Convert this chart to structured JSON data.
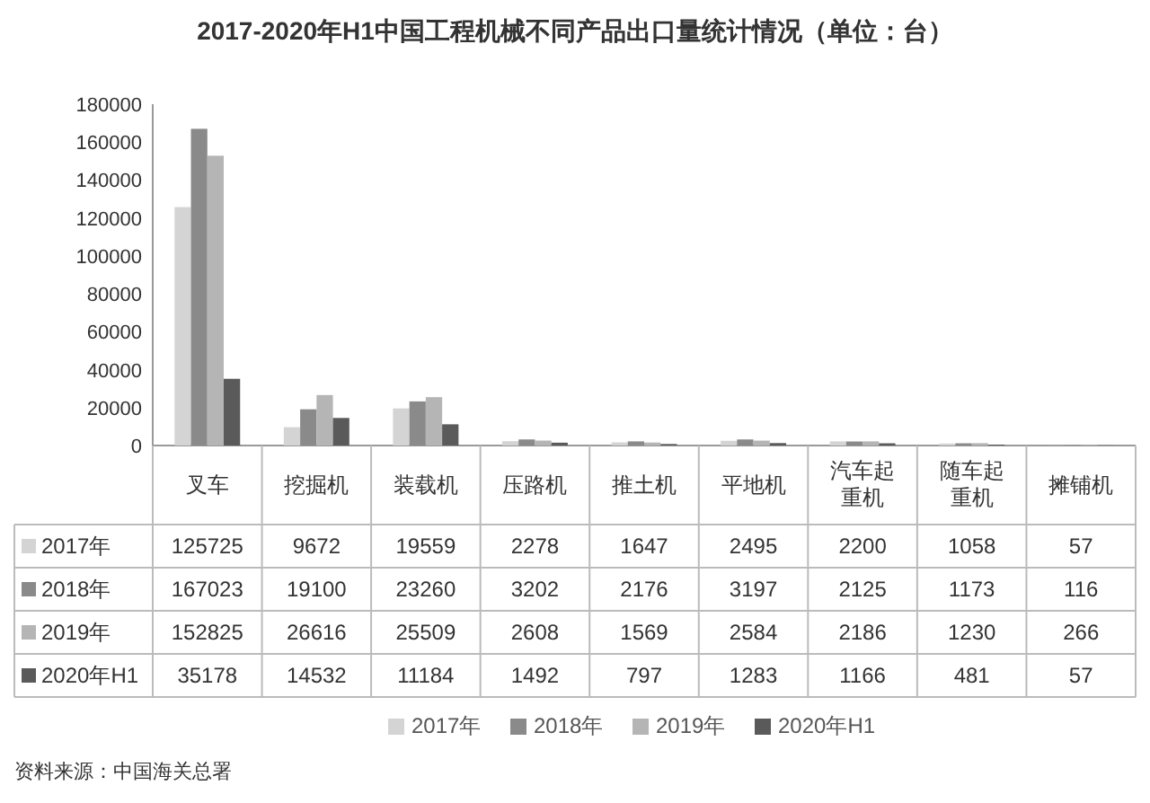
{
  "chart_data": {
    "type": "bar",
    "title": "2017-2020年H1中国工程机械不同产品出口量统计情况（单位：台）",
    "categories": [
      "叉车",
      "挖掘机",
      "装载机",
      "压路机",
      "推土机",
      "平地机",
      "汽车起重机",
      "随车起重机",
      "摊铺机"
    ],
    "series": [
      {
        "name": "2017年",
        "color": "#d4d4d4",
        "values": [
          125725,
          9672,
          19559,
          2278,
          1647,
          2495,
          2200,
          1058,
          57
        ]
      },
      {
        "name": "2018年",
        "color": "#8a8a8a",
        "values": [
          167023,
          19100,
          23260,
          3202,
          2176,
          3197,
          2125,
          1173,
          116
        ]
      },
      {
        "name": "2019年",
        "color": "#b5b5b5",
        "values": [
          152825,
          26616,
          25509,
          2608,
          1569,
          2584,
          2186,
          1230,
          266
        ]
      },
      {
        "name": "2020年H1",
        "color": "#5a5a5a",
        "values": [
          35178,
          14532,
          11184,
          1492,
          797,
          1283,
          1166,
          481,
          57
        ]
      }
    ],
    "ylim": [
      0,
      180000
    ],
    "yticks": [
      0,
      20000,
      40000,
      60000,
      80000,
      100000,
      120000,
      140000,
      160000,
      180000
    ],
    "data_labels": true,
    "legend": "bottom",
    "annotations": [
      "资料来源：中国海关总署"
    ]
  }
}
